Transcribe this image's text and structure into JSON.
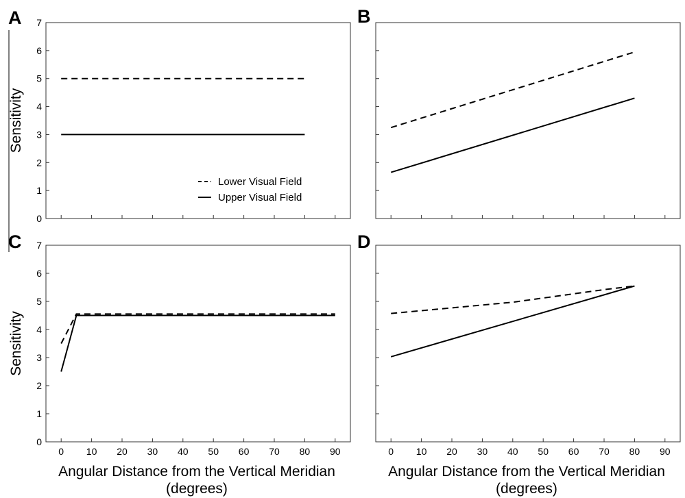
{
  "chart_data": [
    {
      "type": "line",
      "panel_label": "A",
      "xlabel": "",
      "ylabel": "Sensitivity",
      "xlim": [
        -5,
        95
      ],
      "ylim": [
        0,
        7
      ],
      "xticks": [
        0,
        10,
        20,
        30,
        40,
        50,
        60,
        70,
        80,
        90
      ],
      "yticks": [
        0,
        1,
        2,
        3,
        4,
        5,
        6,
        7
      ],
      "x_tick_labels_visible": false,
      "y_tick_labels_visible": true,
      "legend": {
        "placement": "bottom-right"
      },
      "series": [
        {
          "name": "Lower Visual Field",
          "style": "dashed",
          "x": [
            0,
            80
          ],
          "y": [
            5,
            5
          ]
        },
        {
          "name": "Upper Visual Field",
          "style": "solid",
          "x": [
            0,
            80
          ],
          "y": [
            3,
            3
          ]
        }
      ]
    },
    {
      "type": "line",
      "panel_label": "B",
      "xlabel": "",
      "ylabel": "",
      "xlim": [
        -5,
        95
      ],
      "ylim": [
        0,
        7
      ],
      "xticks": [
        0,
        10,
        20,
        30,
        40,
        50,
        60,
        70,
        80,
        90
      ],
      "yticks": [
        0,
        1,
        2,
        3,
        4,
        5,
        6,
        7
      ],
      "x_tick_labels_visible": false,
      "y_tick_labels_visible": false,
      "series": [
        {
          "style": "dashed",
          "x": [
            0,
            80
          ],
          "y": [
            3.25,
            5.95
          ]
        },
        {
          "style": "solid",
          "x": [
            0,
            80
          ],
          "y": [
            1.65,
            4.3
          ]
        }
      ]
    },
    {
      "type": "line",
      "panel_label": "C",
      "xlabel": "Angular Distance from the Vertical Meridian",
      "xlabel_unit": "(degrees)",
      "ylabel": "Sensitivity",
      "xlim": [
        -5,
        95
      ],
      "ylim": [
        0,
        7
      ],
      "xticks": [
        0,
        10,
        20,
        30,
        40,
        50,
        60,
        70,
        80,
        90
      ],
      "yticks": [
        0,
        1,
        2,
        3,
        4,
        5,
        6,
        7
      ],
      "x_tick_labels_visible": true,
      "y_tick_labels_visible": true,
      "series": [
        {
          "style": "dashed",
          "x": [
            0,
            5,
            90
          ],
          "y": [
            3.5,
            4.55,
            4.55
          ]
        },
        {
          "style": "solid",
          "x": [
            0,
            5,
            90
          ],
          "y": [
            2.5,
            4.5,
            4.5
          ]
        }
      ]
    },
    {
      "type": "line",
      "panel_label": "D",
      "xlabel": "Angular Distance from the Vertical Meridian",
      "xlabel_unit": "(degrees)",
      "ylabel": "",
      "xlim": [
        -5,
        95
      ],
      "ylim": [
        0,
        7
      ],
      "xticks": [
        0,
        10,
        20,
        30,
        40,
        50,
        60,
        70,
        80,
        90
      ],
      "yticks": [
        0,
        1,
        2,
        3,
        4,
        5,
        6,
        7
      ],
      "x_tick_labels_visible": true,
      "y_tick_labels_visible": false,
      "series": [
        {
          "style": "dashed",
          "x": [
            0,
            40,
            70,
            80
          ],
          "y": [
            4.57,
            4.97,
            5.42,
            5.55
          ]
        },
        {
          "style": "solid",
          "x": [
            0,
            80
          ],
          "y": [
            3.03,
            5.55
          ]
        }
      ]
    }
  ]
}
